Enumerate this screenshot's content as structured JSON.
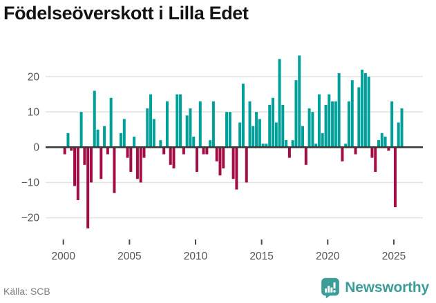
{
  "title": "Födelseöverskott i Lilla Edet",
  "footer": {
    "source": "Källa: SCB",
    "logo_text": "Newsworthy"
  },
  "colors": {
    "positive": "#00a09a",
    "negative": "#a30d45",
    "zero_line": "#3b3b3b",
    "gridline": "#e3e3e3",
    "axis_label": "#555555",
    "tick_mark": "#4a4a4a",
    "title": "#141414",
    "source_text": "#7d7d7d",
    "logo": "#3d9e99"
  },
  "chart_data": {
    "type": "bar",
    "title": "Födelseöverskott i Lilla Edet",
    "frequency": "quarterly",
    "start_period": "2000Q1",
    "end_period": "2025Q3",
    "x_tick_labels": [
      "2000",
      "2005",
      "2010",
      "2015",
      "2020",
      "2025"
    ],
    "y_ticks": [
      20,
      10,
      0,
      -10,
      -20
    ],
    "y_tick_labels": [
      "20",
      "10",
      "0",
      "−10",
      "−20"
    ],
    "ylim": [
      -25,
      27
    ],
    "grid": true,
    "legend": "none",
    "values": [
      -2,
      4,
      -1,
      -11,
      -15,
      10,
      -5,
      -23,
      -10,
      16,
      5,
      -9,
      6,
      -2,
      14,
      -13,
      0,
      4,
      8,
      -3,
      -7,
      3,
      -9,
      -10,
      -3,
      11,
      15,
      8,
      0,
      2,
      -2,
      13,
      -5,
      -6,
      15,
      15,
      -2,
      9,
      11,
      3,
      -7,
      13,
      -2,
      -2,
      2,
      13,
      -4,
      -8,
      -6,
      10,
      10,
      -9,
      -12,
      7,
      18,
      -10,
      13,
      6,
      10,
      8,
      1,
      1,
      12,
      14,
      7,
      25,
      12,
      2,
      -3,
      2,
      19,
      26,
      6,
      -5,
      11,
      10,
      1,
      15,
      4,
      12,
      15,
      13,
      13,
      21,
      -4,
      1,
      13,
      19,
      -2,
      17,
      22,
      21,
      20,
      -3,
      -7,
      2,
      4,
      3,
      -1,
      13,
      -17,
      7,
      11
    ]
  }
}
